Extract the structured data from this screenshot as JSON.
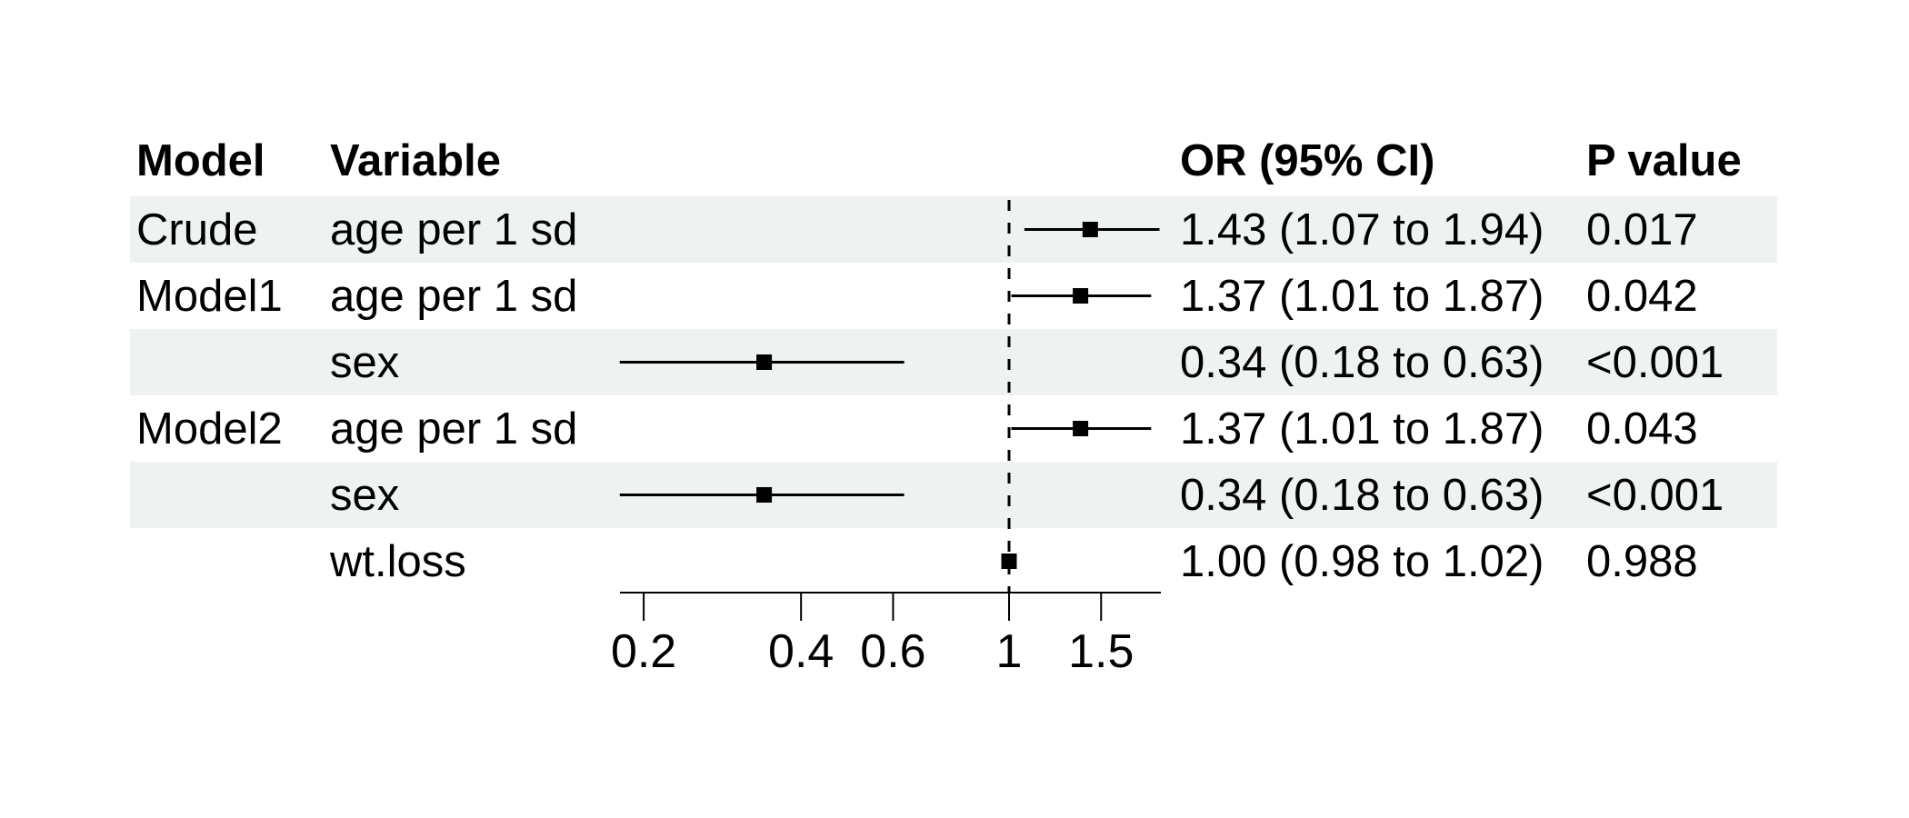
{
  "header": {
    "model": "Model",
    "variable": "Variable",
    "or_ci": "OR (95% CI)",
    "p_value": "P value"
  },
  "chart_data": {
    "type": "forest",
    "title": "",
    "x_scale": "log10",
    "x_ticks": [
      0.2,
      0.4,
      0.6,
      1,
      1.5
    ],
    "x_tick_labels": [
      "0.2",
      "0.4",
      "0.6",
      "1",
      "1.5"
    ],
    "xlim": [
      0.18,
      1.95
    ],
    "reference_line": 1,
    "columns": [
      "Model",
      "Variable",
      "OR (95% CI)",
      "P value"
    ],
    "rows": [
      {
        "model": "Crude",
        "variable": "age per 1 sd",
        "estimate": 1.43,
        "ci_low": 1.07,
        "ci_high": 1.94,
        "or_ci": "1.43 (1.07 to 1.94)",
        "p_value": "0.017",
        "shaded": true
      },
      {
        "model": "Model1",
        "variable": "age per 1 sd",
        "estimate": 1.37,
        "ci_low": 1.01,
        "ci_high": 1.87,
        "or_ci": "1.37 (1.01 to 1.87)",
        "p_value": "0.042",
        "shaded": false
      },
      {
        "model": "",
        "variable": "sex",
        "estimate": 0.34,
        "ci_low": 0.18,
        "ci_high": 0.63,
        "or_ci": "0.34 (0.18 to 0.63)",
        "p_value": "<0.001",
        "shaded": true
      },
      {
        "model": "Model2",
        "variable": "age per 1 sd",
        "estimate": 1.37,
        "ci_low": 1.01,
        "ci_high": 1.87,
        "or_ci": "1.37 (1.01 to 1.87)",
        "p_value": "0.043",
        "shaded": false
      },
      {
        "model": "",
        "variable": "sex",
        "estimate": 0.34,
        "ci_low": 0.18,
        "ci_high": 0.63,
        "or_ci": "0.34 (0.18 to 0.63)",
        "p_value": "<0.001",
        "shaded": true
      },
      {
        "model": "",
        "variable": "wt.loss",
        "estimate": 1.0,
        "ci_low": 0.98,
        "ci_high": 1.02,
        "or_ci": "1.00 (0.98 to 1.02)",
        "p_value": "0.988",
        "shaded": false
      }
    ]
  },
  "colors": {
    "row_band": "#eef2f0",
    "text": "#000000",
    "plot_line": "#000000"
  }
}
